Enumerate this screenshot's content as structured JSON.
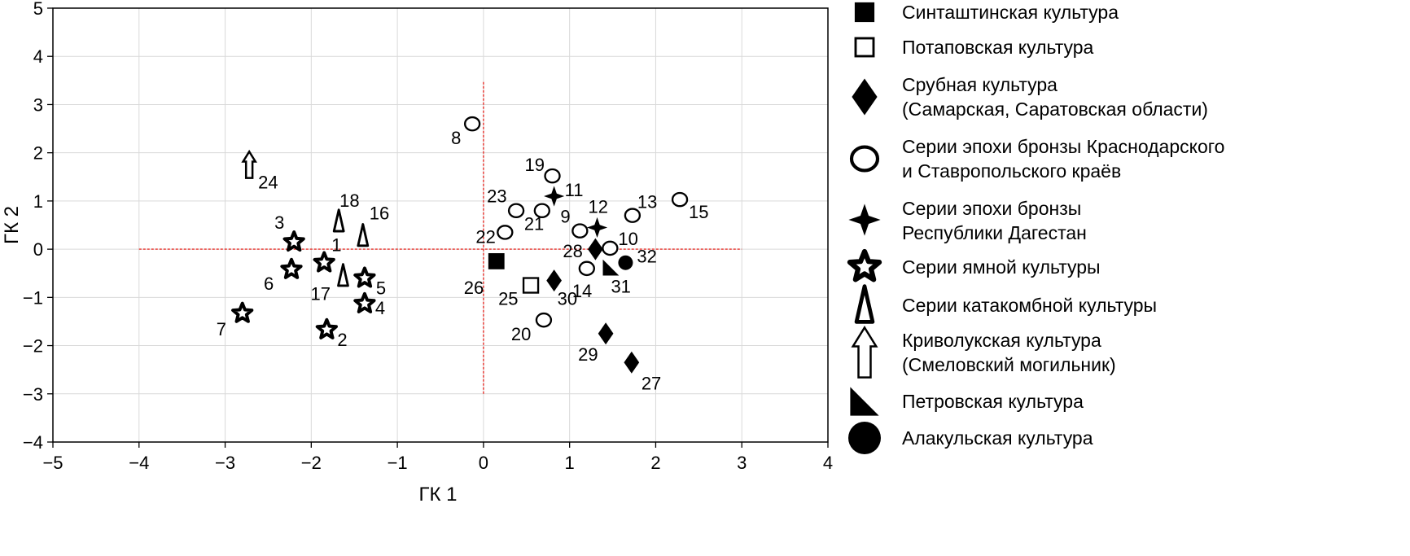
{
  "chart_data": {
    "type": "scatter",
    "xlabel": "ГК 1",
    "ylabel": "ГК 2",
    "xlim": [
      -5,
      4
    ],
    "ylim": [
      -4,
      5
    ],
    "xticks": [
      -5,
      -4,
      -3,
      -2,
      -1,
      0,
      1,
      2,
      3,
      4
    ],
    "yticks": [
      -4,
      -3,
      -2,
      -1,
      0,
      1,
      2,
      3,
      4,
      5
    ],
    "xtick_labels": [
      "−5",
      "−4",
      "−3",
      "−2",
      "−1",
      "0",
      "1",
      "2",
      "3",
      "4"
    ],
    "ytick_labels": [
      "−4",
      "−3",
      "−2",
      "−1",
      "0",
      "1",
      "2",
      "3",
      "4",
      "5"
    ],
    "grid": true,
    "legend_position": "right",
    "reference_lines": {
      "color": "#e8302a",
      "horizontal": {
        "y": 0,
        "x_from": -4,
        "x_to": 3
      },
      "vertical": {
        "x": 0,
        "y_from": -3,
        "y_to": 3.5
      }
    },
    "series": [
      {
        "name": "Синташтинская культура",
        "marker": "filled-square",
        "points": [
          {
            "label": "26",
            "x": 0.15,
            "y": -0.25
          }
        ]
      },
      {
        "name": "Потаповская культура",
        "marker": "open-square",
        "points": [
          {
            "label": "25",
            "x": 0.55,
            "y": -0.75
          }
        ]
      },
      {
        "name": "Срубная культура\n(Самарская, Саратовская области)",
        "marker": "filled-diamond",
        "points": [
          {
            "label": "28",
            "x": 1.3,
            "y": 0.0
          },
          {
            "label": "30",
            "x": 0.82,
            "y": -0.65
          },
          {
            "label": "29",
            "x": 1.42,
            "y": -1.75
          },
          {
            "label": "27",
            "x": 1.72,
            "y": -2.35
          }
        ]
      },
      {
        "name": "Серии эпохи бронзы Краснодарского\nи Ставропольского краёв",
        "marker": "open-circle",
        "points": [
          {
            "label": "8",
            "x": -0.13,
            "y": 2.6
          },
          {
            "label": "19",
            "x": 0.8,
            "y": 1.52
          },
          {
            "label": "23",
            "x": 0.38,
            "y": 0.8
          },
          {
            "label": "21",
            "x": 0.68,
            "y": 0.8
          },
          {
            "label": "22",
            "x": 0.25,
            "y": 0.35
          },
          {
            "label": "9",
            "x": 1.12,
            "y": 0.38
          },
          {
            "label": "13",
            "x": 1.73,
            "y": 0.7
          },
          {
            "label": "15",
            "x": 2.28,
            "y": 1.03
          },
          {
            "label": "10",
            "x": 1.47,
            "y": 0.02
          },
          {
            "label": "14",
            "x": 1.2,
            "y": -0.4
          },
          {
            "label": "20",
            "x": 0.7,
            "y": -1.47
          }
        ]
      },
      {
        "name": "Серии эпохи бронзы\nРеспублики Дагестан",
        "marker": "four-point-star",
        "points": [
          {
            "label": "11",
            "x": 0.82,
            "y": 1.1
          },
          {
            "label": "12",
            "x": 1.32,
            "y": 0.45
          }
        ]
      },
      {
        "name": "Серии ямной культуры",
        "marker": "star",
        "points": [
          {
            "label": "3",
            "x": -2.2,
            "y": 0.15
          },
          {
            "label": "6",
            "x": -2.23,
            "y": -0.42
          },
          {
            "label": "1",
            "x": -1.85,
            "y": -0.28
          },
          {
            "label": "5",
            "x": -1.38,
            "y": -0.6
          },
          {
            "label": "4",
            "x": -1.38,
            "y": -1.13
          },
          {
            "label": "7",
            "x": -2.8,
            "y": -1.33
          },
          {
            "label": "2",
            "x": -1.82,
            "y": -1.67
          }
        ]
      },
      {
        "name": "Серии катакомбной культуры",
        "marker": "open-triangle",
        "points": [
          {
            "label": "18",
            "x": -1.68,
            "y": 0.58
          },
          {
            "label": "16",
            "x": -1.4,
            "y": 0.28
          },
          {
            "label": "17",
            "x": -1.63,
            "y": -0.55
          }
        ]
      },
      {
        "name": "Криволукская культура\n(Смеловский могильник)",
        "marker": "open-arrow",
        "points": [
          {
            "label": "24",
            "x": -2.72,
            "y": 1.75
          }
        ]
      },
      {
        "name": "Петровская культура",
        "marker": "right-triangle",
        "points": [
          {
            "label": "31",
            "x": 1.48,
            "y": -0.38
          }
        ]
      },
      {
        "name": "Алакульская культура",
        "marker": "filled-circle",
        "points": [
          {
            "label": "32",
            "x": 1.65,
            "y": -0.28
          }
        ]
      }
    ]
  }
}
